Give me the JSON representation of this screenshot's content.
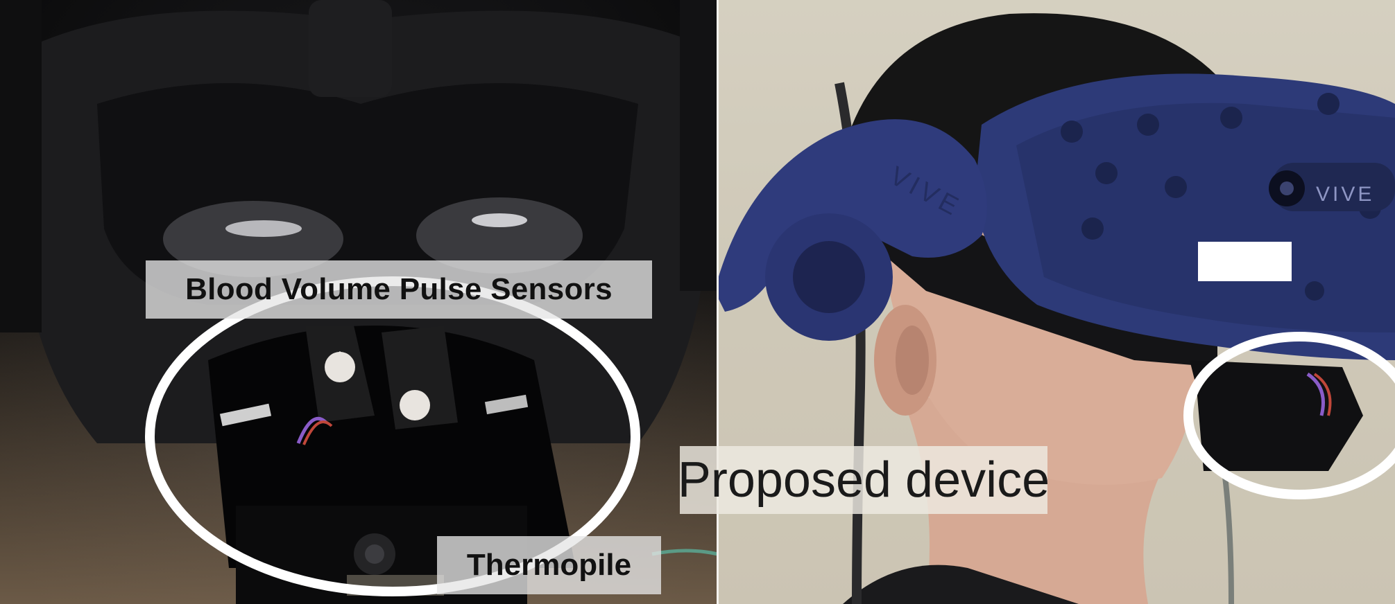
{
  "labels": {
    "bvp": "Blood Volume Pulse Sensors",
    "thermopile": "Thermopile",
    "device": "Proposed device"
  },
  "strap_logo": "VIVE",
  "headset_logo": "VIVE",
  "colors": {
    "headset": "#2b3670",
    "foam": "#1a1a1a",
    "highlight_ring": "#ffffff",
    "label_background": "#e6e6e6",
    "background_wall": "#d4cdbd"
  }
}
